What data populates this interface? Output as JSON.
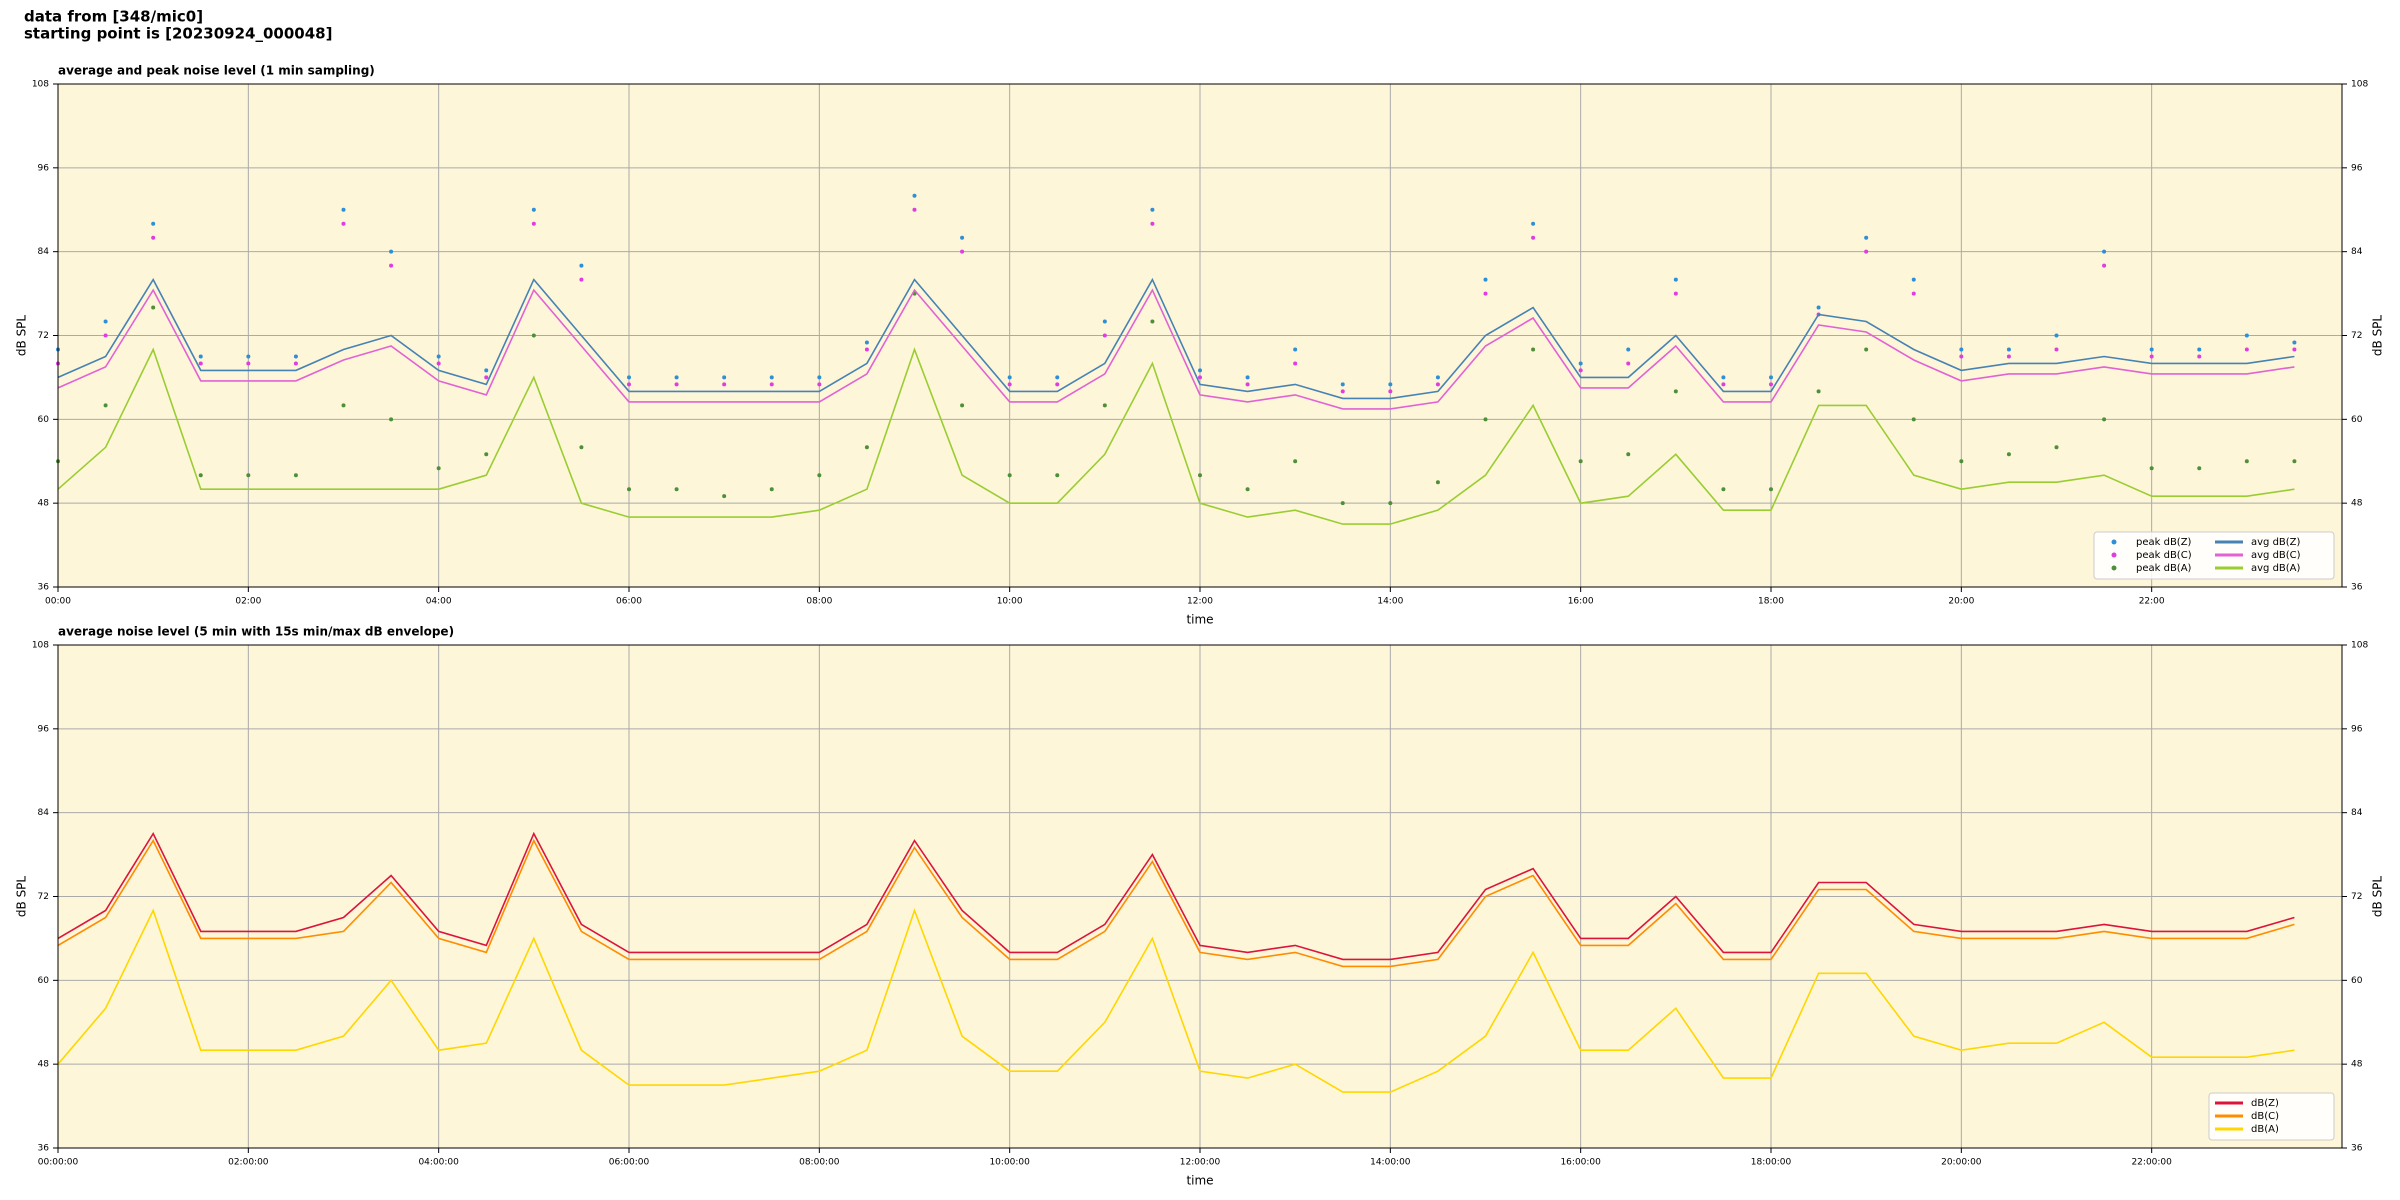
{
  "header": {
    "lines": [
      "data from [348/mic0]",
      "starting point is [20230924_000048]"
    ]
  },
  "chart_data": [
    {
      "type": "line",
      "title": "average and peak noise level (1 min sampling)",
      "xlabel": "time",
      "ylabel": "dB SPL",
      "background": "#fdf6d9",
      "grid": true,
      "legend": "lower right",
      "legend_columns": 2,
      "x": [
        0,
        0.5,
        1,
        1.5,
        2,
        2.5,
        3,
        3.5,
        4,
        4.5,
        5,
        5.5,
        6,
        6.5,
        7,
        7.5,
        8,
        8.5,
        9,
        9.5,
        10,
        10.5,
        11,
        11.5,
        12,
        12.5,
        13,
        13.5,
        14,
        14.5,
        15,
        15.5,
        16,
        16.5,
        17,
        17.5,
        18,
        18.5,
        19,
        19.5,
        20,
        20.5,
        21,
        21.5,
        22,
        22.5,
        23,
        23.5
      ],
      "xlim": [
        0,
        24
      ],
      "ylim": [
        36,
        108
      ],
      "yticks": [
        36,
        48,
        60,
        72,
        84,
        96,
        108
      ],
      "xticks": [
        {
          "value": 0,
          "label": "00:00"
        },
        {
          "value": 2,
          "label": "02:00"
        },
        {
          "value": 4,
          "label": "04:00"
        },
        {
          "value": 6,
          "label": "06:00"
        },
        {
          "value": 8,
          "label": "08:00"
        },
        {
          "value": 10,
          "label": "10:00"
        },
        {
          "value": 12,
          "label": "12:00"
        },
        {
          "value": 14,
          "label": "14:00"
        },
        {
          "value": 16,
          "label": "16:00"
        },
        {
          "value": 18,
          "label": "18:00"
        },
        {
          "value": 20,
          "label": "20:00"
        },
        {
          "value": 22,
          "label": "22:00"
        }
      ],
      "series": [
        {
          "name": "peak dB(Z)",
          "color": "#2e8fd6",
          "marker": true,
          "values": [
            70,
            74,
            88,
            69,
            69,
            69,
            90,
            84,
            69,
            67,
            90,
            82,
            66,
            66,
            66,
            66,
            66,
            71,
            92,
            86,
            66,
            66,
            74,
            90,
            67,
            66,
            70,
            65,
            65,
            66,
            80,
            88,
            68,
            70,
            80,
            66,
            66,
            76,
            86,
            80,
            70,
            70,
            72,
            84,
            70,
            70,
            72,
            71
          ]
        },
        {
          "name": "peak dB(C)",
          "color": "#e03ce0",
          "marker": true,
          "values": [
            68,
            72,
            86,
            68,
            68,
            68,
            88,
            82,
            68,
            66,
            88,
            80,
            65,
            65,
            65,
            65,
            65,
            70,
            90,
            84,
            65,
            65,
            72,
            88,
            66,
            65,
            68,
            64,
            64,
            65,
            78,
            86,
            67,
            68,
            78,
            65,
            65,
            75,
            84,
            78,
            69,
            69,
            70,
            82,
            69,
            69,
            70,
            70
          ]
        },
        {
          "name": "peak dB(A)",
          "color": "#4f8f3a",
          "marker": true,
          "values": [
            54,
            62,
            76,
            52,
            52,
            52,
            62,
            60,
            53,
            55,
            72,
            56,
            50,
            50,
            49,
            50,
            52,
            56,
            78,
            62,
            52,
            52,
            62,
            74,
            52,
            50,
            54,
            48,
            48,
            51,
            60,
            70,
            54,
            55,
            64,
            50,
            50,
            64,
            70,
            60,
            54,
            55,
            56,
            60,
            53,
            53,
            54,
            54
          ]
        },
        {
          "name": "avg dB(Z)",
          "color": "#4682b4",
          "marker": false,
          "values": [
            66,
            69,
            80,
            67,
            67,
            67,
            70,
            72,
            67,
            65,
            80,
            72,
            64,
            64,
            64,
            64,
            64,
            68,
            80,
            72,
            64,
            64,
            68,
            80,
            65,
            64,
            65,
            63,
            63,
            64,
            72,
            76,
            66,
            66,
            72,
            64,
            64,
            75,
            74,
            70,
            67,
            68,
            68,
            69,
            68,
            68,
            68,
            69
          ]
        },
        {
          "name": "avg dB(C)",
          "color": "#e262d4",
          "marker": false,
          "values": [
            64.5,
            67.5,
            78.5,
            65.5,
            65.5,
            65.5,
            68.5,
            70.5,
            65.5,
            63.5,
            78.5,
            70.5,
            62.5,
            62.5,
            62.5,
            62.5,
            62.5,
            66.5,
            78.5,
            70.5,
            62.5,
            62.5,
            66.5,
            78.5,
            63.5,
            62.5,
            63.5,
            61.5,
            61.5,
            62.5,
            70.5,
            74.5,
            64.5,
            64.5,
            70.5,
            62.5,
            62.5,
            73.5,
            72.5,
            68.5,
            65.5,
            66.5,
            66.5,
            67.5,
            66.5,
            66.5,
            66.5,
            67.5
          ]
        },
        {
          "name": "avg dB(A)",
          "color": "#9acd32",
          "marker": false,
          "values": [
            50,
            56,
            70,
            50,
            50,
            50,
            50,
            50,
            50,
            52,
            66,
            48,
            46,
            46,
            46,
            46,
            47,
            50,
            70,
            52,
            48,
            48,
            55,
            68,
            48,
            46,
            47,
            45,
            45,
            47,
            52,
            62,
            48,
            49,
            55,
            47,
            47,
            62,
            62,
            52,
            50,
            51,
            51,
            52,
            49,
            49,
            49,
            50
          ]
        }
      ]
    },
    {
      "type": "line",
      "title": "average noise level (5 min with 15s min/max dB envelope)",
      "xlabel": "time",
      "ylabel": "dB SPL",
      "background": "#fdf6d9",
      "grid": true,
      "legend": "lower right",
      "legend_columns": 1,
      "x": [
        0,
        0.5,
        1,
        1.5,
        2,
        2.5,
        3,
        3.5,
        4,
        4.5,
        5,
        5.5,
        6,
        6.5,
        7,
        7.5,
        8,
        8.5,
        9,
        9.5,
        10,
        10.5,
        11,
        11.5,
        12,
        12.5,
        13,
        13.5,
        14,
        14.5,
        15,
        15.5,
        16,
        16.5,
        17,
        17.5,
        18,
        18.5,
        19,
        19.5,
        20,
        20.5,
        21,
        21.5,
        22,
        22.5,
        23,
        23.5
      ],
      "xlim": [
        0,
        24
      ],
      "ylim": [
        36,
        108
      ],
      "yticks": [
        36,
        48,
        60,
        72,
        84,
        96,
        108
      ],
      "xticks": [
        {
          "value": 0,
          "label": "00:00:00"
        },
        {
          "value": 2,
          "label": "02:00:00"
        },
        {
          "value": 4,
          "label": "04:00:00"
        },
        {
          "value": 6,
          "label": "06:00:00"
        },
        {
          "value": 8,
          "label": "08:00:00"
        },
        {
          "value": 10,
          "label": "10:00:00"
        },
        {
          "value": 12,
          "label": "12:00:00"
        },
        {
          "value": 14,
          "label": "14:00:00"
        },
        {
          "value": 16,
          "label": "16:00:00"
        },
        {
          "value": 18,
          "label": "18:00:00"
        },
        {
          "value": 20,
          "label": "20:00:00"
        },
        {
          "value": 22,
          "label": "22:00:00"
        }
      ],
      "series": [
        {
          "name": "dB(Z)",
          "color": "#dc143c",
          "marker": false,
          "values": [
            66,
            70,
            81,
            67,
            67,
            67,
            69,
            75,
            67,
            65,
            81,
            68,
            64,
            64,
            64,
            64,
            64,
            68,
            80,
            70,
            64,
            64,
            68,
            78,
            65,
            64,
            65,
            63,
            63,
            64,
            73,
            76,
            66,
            66,
            72,
            64,
            64,
            74,
            74,
            68,
            67,
            67,
            67,
            68,
            67,
            67,
            67,
            69
          ]
        },
        {
          "name": "dB(C)",
          "color": "#ff8c00",
          "marker": false,
          "values": [
            65,
            69,
            80,
            66,
            66,
            66,
            67,
            74,
            66,
            64,
            80,
            67,
            63,
            63,
            63,
            63,
            63,
            67,
            79,
            69,
            63,
            63,
            67,
            77,
            64,
            63,
            64,
            62,
            62,
            63,
            72,
            75,
            65,
            65,
            71,
            63,
            63,
            73,
            73,
            67,
            66,
            66,
            66,
            67,
            66,
            66,
            66,
            68
          ]
        },
        {
          "name": "dB(A)",
          "color": "#ffd700",
          "marker": false,
          "values": [
            48,
            56,
            70,
            50,
            50,
            50,
            52,
            60,
            50,
            51,
            66,
            50,
            45,
            45,
            45,
            46,
            47,
            50,
            70,
            52,
            47,
            47,
            54,
            66,
            47,
            46,
            48,
            44,
            44,
            47,
            52,
            64,
            50,
            50,
            56,
            46,
            46,
            61,
            61,
            52,
            50,
            51,
            51,
            54,
            49,
            49,
            49,
            50
          ]
        }
      ]
    }
  ]
}
